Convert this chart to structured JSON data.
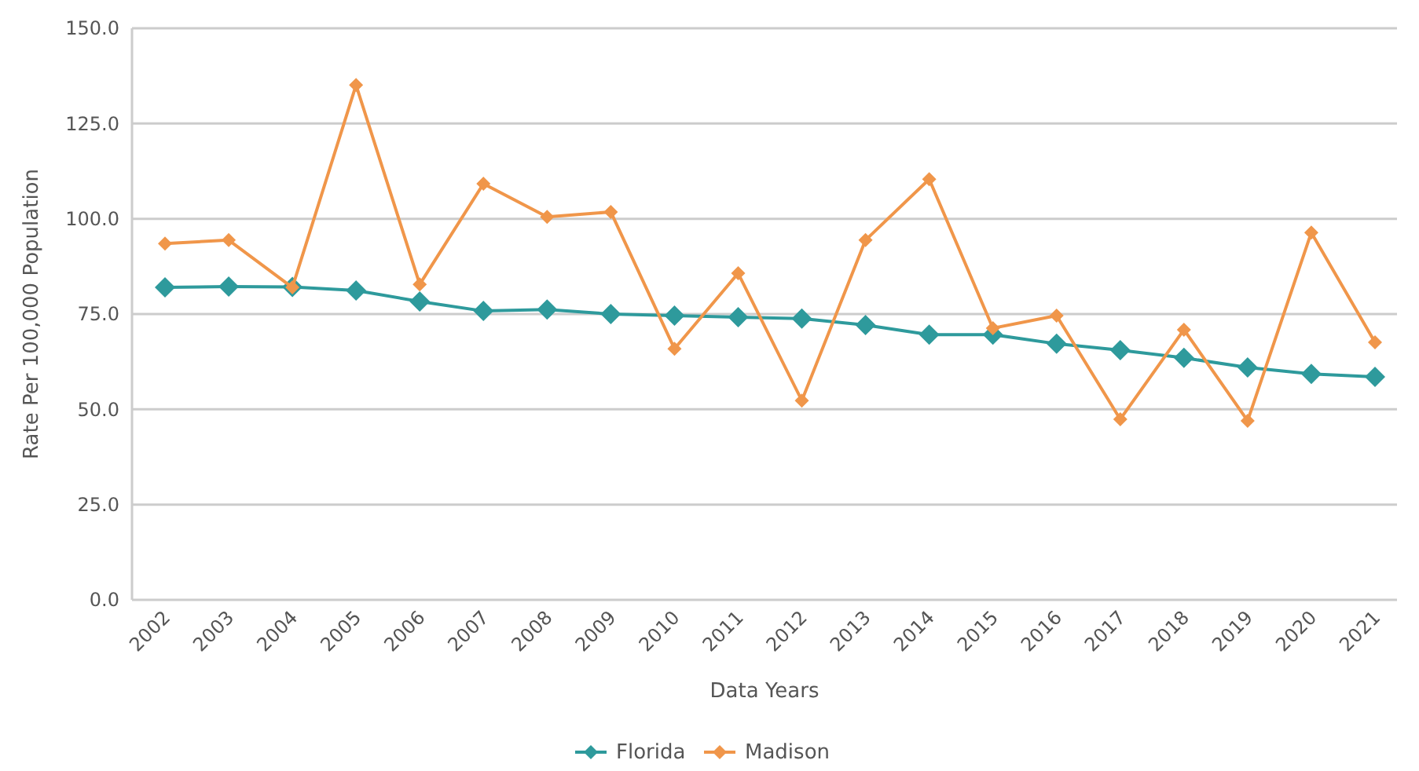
{
  "chart_data": {
    "type": "line",
    "xlabel": "Data Years",
    "ylabel": "Rate Per 100,000 Population",
    "categories": [
      "2002",
      "2003",
      "2004",
      "2005",
      "2006",
      "2007",
      "2008",
      "2009",
      "2010",
      "2011",
      "2012",
      "2013",
      "2014",
      "2015",
      "2016",
      "2017",
      "2018",
      "2019",
      "2020",
      "2021"
    ],
    "series": [
      {
        "name": "Florida",
        "color": "#2e9a9c",
        "values": [
          82.0,
          82.2,
          82.1,
          81.2,
          78.3,
          75.8,
          76.2,
          75.0,
          74.6,
          74.2,
          73.8,
          72.1,
          69.6,
          69.6,
          67.2,
          65.5,
          63.5,
          61.0,
          59.3,
          58.5
        ]
      },
      {
        "name": "Madison",
        "color": "#f0964a",
        "values": [
          93.5,
          94.4,
          82.0,
          135.1,
          82.8,
          109.2,
          100.5,
          101.8,
          65.9,
          85.7,
          52.3,
          94.4,
          110.4,
          71.3,
          74.6,
          47.4,
          70.9,
          47.0,
          96.4,
          67.6
        ]
      }
    ],
    "ylim": [
      0,
      150
    ],
    "yticks": [
      {
        "value": 0,
        "label": "0.0"
      },
      {
        "value": 25,
        "label": "25.0"
      },
      {
        "value": 50,
        "label": "50.0"
      },
      {
        "value": 75,
        "label": "75.0"
      },
      {
        "value": 100,
        "label": "100.0"
      },
      {
        "value": 125,
        "label": "125.0"
      },
      {
        "value": 150,
        "label": "150.0"
      }
    ],
    "grid": "y",
    "legend": "bottom",
    "marker": "diamond",
    "line_style": "solid"
  }
}
